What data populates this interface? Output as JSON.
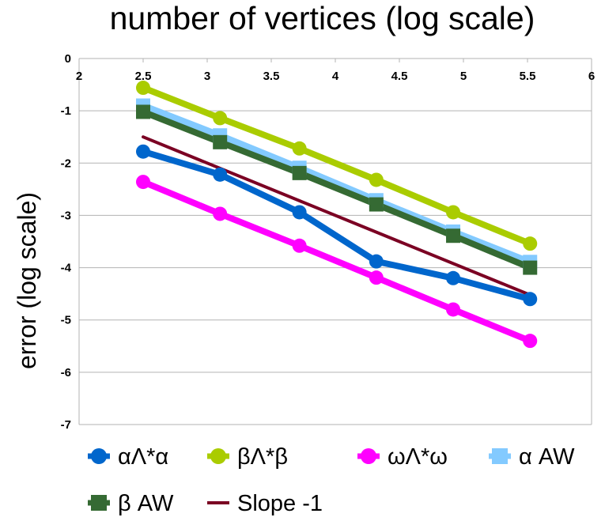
{
  "chart_data": {
    "type": "line",
    "title": "number of vertices (log scale)",
    "xlabel": "",
    "ylabel": "error (log scale)",
    "xlim": [
      2,
      6
    ],
    "ylim": [
      -7,
      0
    ],
    "x_ticks": [
      "2",
      "2.5",
      "3",
      "3.5",
      "4",
      "4.5",
      "5",
      "5.5",
      "6"
    ],
    "y_ticks": [
      "0",
      "-1",
      "-2",
      "-3",
      "-4",
      "-5",
      "-6",
      "-7"
    ],
    "x_tick_values": [
      2,
      2.5,
      3,
      3.5,
      4,
      4.5,
      5,
      5.5,
      6
    ],
    "y_tick_values": [
      0,
      -1,
      -2,
      -3,
      -4,
      -5,
      -6,
      -7
    ],
    "x_axis_position": "top",
    "grid": "horizontal",
    "legend_position": "bottom",
    "series": [
      {
        "name": "αΛ*α",
        "color": "#0066cc",
        "marker": "circle",
        "x": [
          2.5,
          3.1,
          3.72,
          4.32,
          4.92,
          5.52
        ],
        "y": [
          -1.78,
          -2.22,
          -2.94,
          -3.88,
          -4.2,
          -4.6
        ]
      },
      {
        "name": "βΛ*β",
        "color": "#aacc00",
        "marker": "circle",
        "x": [
          2.5,
          3.1,
          3.72,
          4.32,
          4.92,
          5.52
        ],
        "y": [
          -0.56,
          -1.14,
          -1.72,
          -2.32,
          -2.94,
          -3.54
        ]
      },
      {
        "name": "ωΛ*ω",
        "color": "#ff00ff",
        "marker": "circle",
        "x": [
          2.5,
          3.1,
          3.72,
          4.32,
          4.92,
          5.52
        ],
        "y": [
          -2.36,
          -2.97,
          -3.58,
          -4.19,
          -4.8,
          -5.4
        ]
      },
      {
        "name": "α AW",
        "color": "#83caff",
        "marker": "square",
        "x": [
          2.5,
          3.1,
          3.72,
          4.32,
          4.92,
          5.52
        ],
        "y": [
          -0.9,
          -1.47,
          -2.09,
          -2.71,
          -3.31,
          -3.89
        ]
      },
      {
        "name": "β AW",
        "color": "#356a33",
        "marker": "square",
        "x": [
          2.5,
          3.1,
          3.72,
          4.32,
          4.92,
          5.52
        ],
        "y": [
          -1.02,
          -1.6,
          -2.19,
          -2.79,
          -3.39,
          -4.0
        ]
      },
      {
        "name": "Slope -1",
        "color": "#7b0023",
        "marker": "none",
        "x": [
          2.5,
          5.52
        ],
        "y": [
          -1.5,
          -4.52
        ]
      }
    ]
  }
}
